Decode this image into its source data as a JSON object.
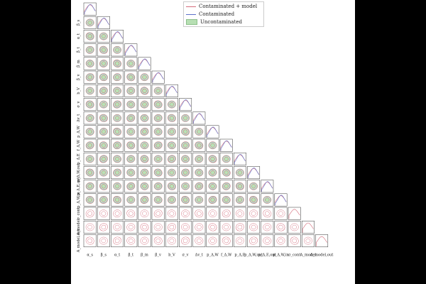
{
  "chart_data": {
    "type": "corner",
    "parameters": [
      {
        "label": "α_s"
      },
      {
        "label": "β_s"
      },
      {
        "label": "α_t"
      },
      {
        "label": "β_t"
      },
      {
        "label": "β_m"
      },
      {
        "label": "β_v"
      },
      {
        "label": "b_V"
      },
      {
        "label": "σ_v"
      },
      {
        "label": "Δv_t"
      },
      {
        "label": "p_Δ,W"
      },
      {
        "label": "f_Δ,W"
      },
      {
        "label": "p_Δ,E"
      },
      {
        "label": "p_Δ,W,out"
      },
      {
        "label": "p_Δ,E,out"
      },
      {
        "label": "p_Δ,W,in"
      },
      {
        "label": "σ_cont"
      },
      {
        "label": "A_model"
      },
      {
        "label": "A_model,out"
      }
    ],
    "series": [
      {
        "name": "Contaminated + model",
        "color": "#d36b7a",
        "style": "line"
      },
      {
        "name": "Contaminated",
        "color": "#5b6fc9",
        "style": "line"
      },
      {
        "name": "Uncontaminated",
        "color": "#8cc08a",
        "style": "filled"
      }
    ],
    "uncontaminated_param_count": 15,
    "legend_position": "top-center"
  },
  "legend": {
    "items": [
      {
        "label": "Contaminated + model"
      },
      {
        "label": "Contaminated"
      },
      {
        "label": "Uncontaminated"
      }
    ]
  },
  "colors": {
    "contaminated_model": "#d36b7a",
    "contaminated": "#5b6fc9",
    "uncontaminated_fill": "#b7dfb3",
    "uncontaminated_edge": "#8cc08a",
    "frame": "#333333"
  }
}
